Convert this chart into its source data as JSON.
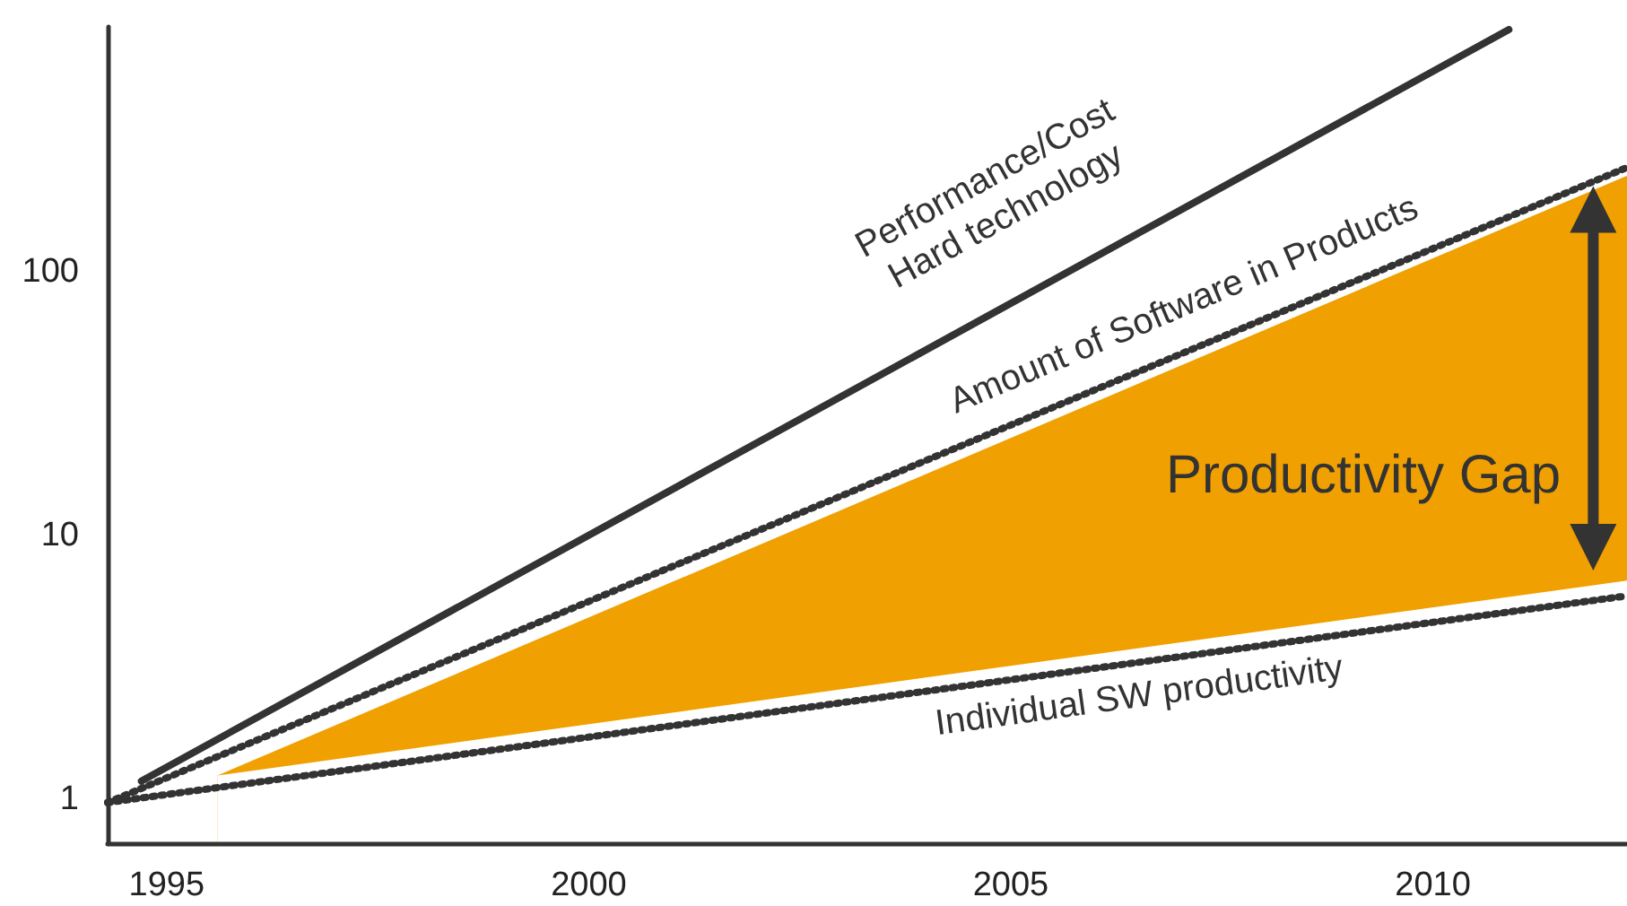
{
  "chart_data": {
    "type": "line",
    "log": "y",
    "xlim": [
      1994.3,
      2012.3
    ],
    "ylim": [
      0.68,
      850
    ],
    "xticks": [
      1995,
      2000,
      2005,
      2010
    ],
    "yticks": [
      1,
      10,
      100
    ],
    "grid": false,
    "marker": "none",
    "series": [
      {
        "type": "area",
        "color": "#f0a000",
        "x": [
          1995.6,
          2012.3
        ],
        "values": [
          1.22,
          230
        ]
      },
      {
        "type": "area",
        "color": "#ffffff",
        "x": [
          1995.6,
          2012.3
        ],
        "values": [
          1.22,
          6.7
        ]
      },
      {
        "color": "#333333",
        "line_style": "solid",
        "x": [
          1994.7,
          2010.9
        ],
        "values": [
          1.17,
          830
        ]
      },
      {
        "color": "#333333",
        "line_style": "dotted",
        "x": [
          1994.3,
          2012.3
        ],
        "values": [
          0.97,
          249
        ]
      },
      {
        "color": "#333333",
        "line_style": "dotted",
        "x": [
          1994.3,
          2012.3
        ],
        "values": [
          0.97,
          5.9
        ]
      }
    ],
    "annotations": [
      "Performance/Cost\nHard technology",
      "Amount of Software in Products",
      "Individual SW productivity",
      "Productivity Gap"
    ]
  }
}
